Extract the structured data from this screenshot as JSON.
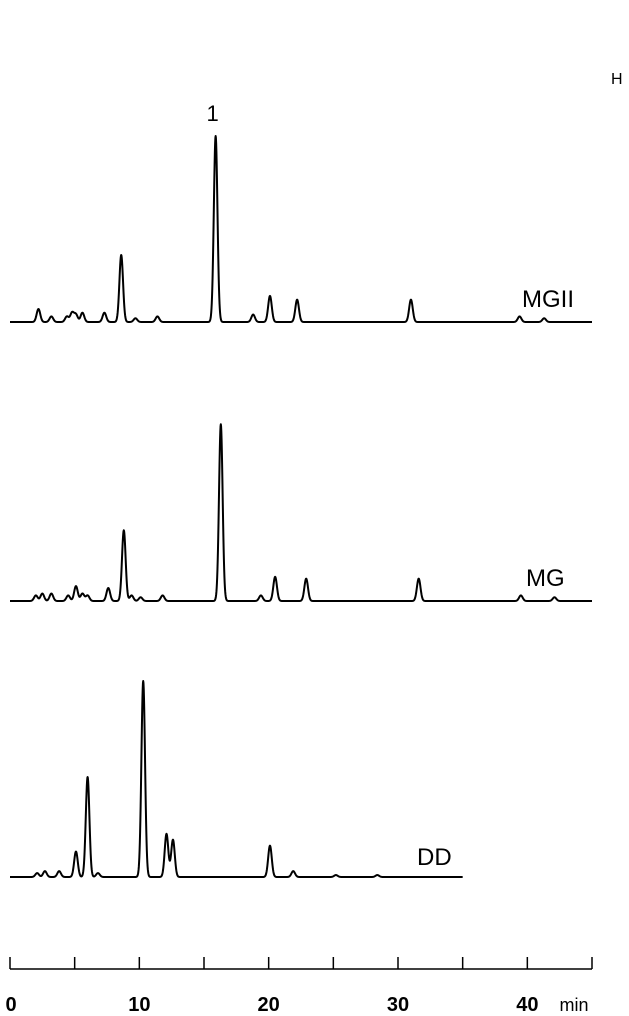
{
  "chart_data": {
    "type": "line",
    "corner_label": "H",
    "x_axis": {
      "min": 0,
      "max": 45,
      "ticks": [
        0,
        5,
        10,
        15,
        20,
        25,
        30,
        35,
        40,
        45
      ],
      "tick_labels": [
        {
          "value": 0,
          "text": "0"
        },
        {
          "value": 10,
          "text": "10"
        },
        {
          "value": 20,
          "text": "20"
        },
        {
          "value": 30,
          "text": "30"
        },
        {
          "value": 40,
          "text": "40"
        }
      ],
      "unit": "min"
    },
    "series": [
      {
        "name": "MGII",
        "x_end": 45,
        "peaks": [
          {
            "t": 2.2,
            "h": 0.07
          },
          {
            "t": 3.2,
            "h": 0.03
          },
          {
            "t": 4.4,
            "h": 0.03
          },
          {
            "t": 4.8,
            "h": 0.05
          },
          {
            "t": 5.1,
            "h": 0.04
          },
          {
            "t": 5.6,
            "h": 0.05
          },
          {
            "t": 7.3,
            "h": 0.05
          },
          {
            "t": 8.6,
            "h": 0.36
          },
          {
            "t": 9.7,
            "h": 0.02
          },
          {
            "t": 11.4,
            "h": 0.03
          },
          {
            "t": 15.9,
            "h": 1.0
          },
          {
            "t": 18.8,
            "h": 0.04
          },
          {
            "t": 20.1,
            "h": 0.14
          },
          {
            "t": 22.2,
            "h": 0.12
          },
          {
            "t": 31.0,
            "h": 0.12
          },
          {
            "t": 39.4,
            "h": 0.03
          },
          {
            "t": 41.3,
            "h": 0.02
          }
        ],
        "annotations": [
          {
            "t": 15.9,
            "text": "1"
          }
        ]
      },
      {
        "name": "MG",
        "x_end": 45,
        "peaks": [
          {
            "t": 2.0,
            "h": 0.03
          },
          {
            "t": 2.5,
            "h": 0.04
          },
          {
            "t": 3.2,
            "h": 0.04
          },
          {
            "t": 4.5,
            "h": 0.03
          },
          {
            "t": 5.1,
            "h": 0.08
          },
          {
            "t": 5.6,
            "h": 0.04
          },
          {
            "t": 6.0,
            "h": 0.03
          },
          {
            "t": 7.6,
            "h": 0.07
          },
          {
            "t": 8.8,
            "h": 0.38
          },
          {
            "t": 9.4,
            "h": 0.03
          },
          {
            "t": 10.1,
            "h": 0.02
          },
          {
            "t": 11.8,
            "h": 0.03
          },
          {
            "t": 16.3,
            "h": 0.95
          },
          {
            "t": 19.4,
            "h": 0.03
          },
          {
            "t": 20.5,
            "h": 0.13
          },
          {
            "t": 22.9,
            "h": 0.12
          },
          {
            "t": 31.6,
            "h": 0.12
          },
          {
            "t": 39.5,
            "h": 0.03
          },
          {
            "t": 42.1,
            "h": 0.02
          }
        ],
        "annotations": []
      },
      {
        "name": "DD",
        "x_end": 35,
        "peaks": [
          {
            "t": 2.1,
            "h": 0.02
          },
          {
            "t": 2.7,
            "h": 0.03
          },
          {
            "t": 3.8,
            "h": 0.03
          },
          {
            "t": 5.1,
            "h": 0.13
          },
          {
            "t": 6.0,
            "h": 0.51
          },
          {
            "t": 6.8,
            "h": 0.02
          },
          {
            "t": 10.3,
            "h": 1.0
          },
          {
            "t": 12.1,
            "h": 0.22
          },
          {
            "t": 12.6,
            "h": 0.19
          },
          {
            "t": 20.1,
            "h": 0.16
          },
          {
            "t": 21.9,
            "h": 0.03
          },
          {
            "t": 25.2,
            "h": 0.01
          },
          {
            "t": 28.4,
            "h": 0.01
          }
        ],
        "annotations": []
      }
    ]
  }
}
